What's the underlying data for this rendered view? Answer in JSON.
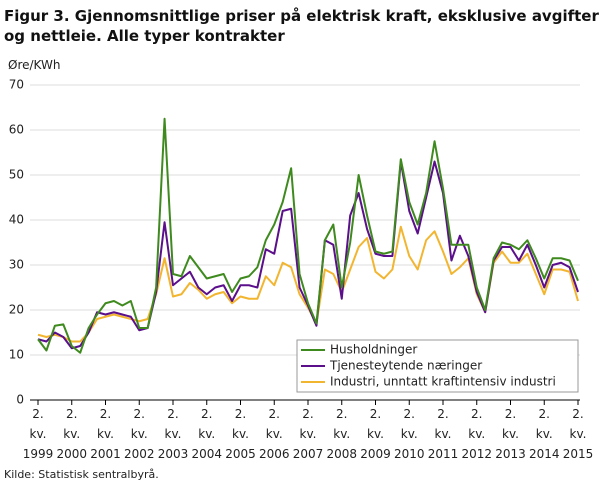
{
  "chart_data": {
    "type": "line",
    "title": "Figur 3. Gjennomsnittlige priser på elektrisk kraft, eksklusive avgifter og nettleie. Alle typer kontrakter",
    "y_label": "Øre/KWh",
    "source": "Kilde: Statistisk sentralbyrå.",
    "categories": [
      "2. kv. 1999",
      null,
      null,
      null,
      "2. kv. 2000",
      null,
      null,
      null,
      "2. kv. 2001",
      null,
      null,
      null,
      "2. kv. 2002",
      null,
      null,
      null,
      "2. kv. 2003",
      null,
      null,
      null,
      "2. kv. 2004",
      null,
      null,
      null,
      "2. kv. 2005",
      null,
      null,
      null,
      "2. kv. 2006",
      null,
      null,
      null,
      "2. kv. 2007",
      null,
      null,
      null,
      "2. kv. 2008",
      null,
      null,
      null,
      "2. kv. 2009",
      null,
      null,
      null,
      "2. kv. 2010",
      null,
      null,
      null,
      "2. kv. 2011",
      null,
      null,
      null,
      "2. kv. 2012",
      null,
      null,
      null,
      "2. kv. 2013",
      null,
      null,
      null,
      "2. kv. 2014",
      null,
      null,
      null,
      "2. kv. 2015"
    ],
    "series": [
      {
        "name": "Husholdninger",
        "color": "#3f8a1f",
        "values": [
          13.5,
          11,
          16.5,
          16.8,
          12,
          10.5,
          16,
          19,
          21.5,
          22,
          21,
          22,
          16,
          16,
          25,
          62.5,
          28,
          27.5,
          32,
          29.5,
          27,
          27.5,
          28,
          24,
          27,
          27.5,
          29.5,
          35.5,
          39,
          44,
          51.5,
          28,
          21.5,
          17,
          35.5,
          39,
          25,
          35,
          50,
          41,
          33,
          32.5,
          33,
          53.5,
          44,
          39,
          46,
          57.5,
          47,
          34.5,
          34.5,
          34.5,
          25,
          20,
          31.5,
          35,
          34.5,
          33.5,
          35.5,
          31.5,
          27,
          31.5,
          31.5,
          31,
          26.5
        ]
      },
      {
        "name": "Tjenesteytende næringer",
        "color": "#5b0f8b",
        "values": [
          13.5,
          13,
          15,
          14,
          11.5,
          12,
          15,
          19.5,
          19,
          19.5,
          19,
          18.5,
          15.5,
          16,
          24,
          39.5,
          25.5,
          27,
          28.5,
          25,
          23.5,
          25,
          25.5,
          22,
          25.5,
          25.5,
          25,
          33.5,
          32.5,
          42,
          42.5,
          25,
          21,
          16.5,
          35.5,
          34.5,
          22.5,
          41,
          46,
          38,
          32.5,
          32,
          32,
          53,
          42,
          37,
          45,
          53,
          46,
          31,
          36.5,
          32,
          24,
          19.5,
          31,
          34,
          34,
          31,
          34.5,
          30,
          25,
          30,
          30.5,
          29.5,
          24
        ]
      },
      {
        "name": "Industri, unntatt kraftintensiv industri",
        "color": "#f2b530",
        "values": [
          14.5,
          14,
          14.5,
          14,
          13,
          13,
          15,
          18,
          18.5,
          19,
          18.5,
          18,
          17.5,
          18,
          23.5,
          31.5,
          23,
          23.5,
          26,
          24.5,
          22.5,
          23.5,
          24,
          21.5,
          23,
          22.5,
          22.5,
          27.5,
          25.5,
          30.5,
          29.5,
          23.5,
          20.5,
          17,
          29,
          28,
          24,
          29,
          34,
          36,
          28.5,
          27,
          29,
          38.5,
          32,
          29,
          35.5,
          37.5,
          33,
          28,
          29.5,
          31.5,
          23.5,
          19.5,
          30.5,
          33,
          30.5,
          30.5,
          32.5,
          28,
          23.5,
          29,
          29,
          28.5,
          22
        ]
      }
    ],
    "ylim": [
      0,
      70
    ],
    "yticks": [
      0,
      10,
      20,
      30,
      40,
      50,
      60,
      70
    ],
    "grid": true,
    "legend": "lower right"
  }
}
